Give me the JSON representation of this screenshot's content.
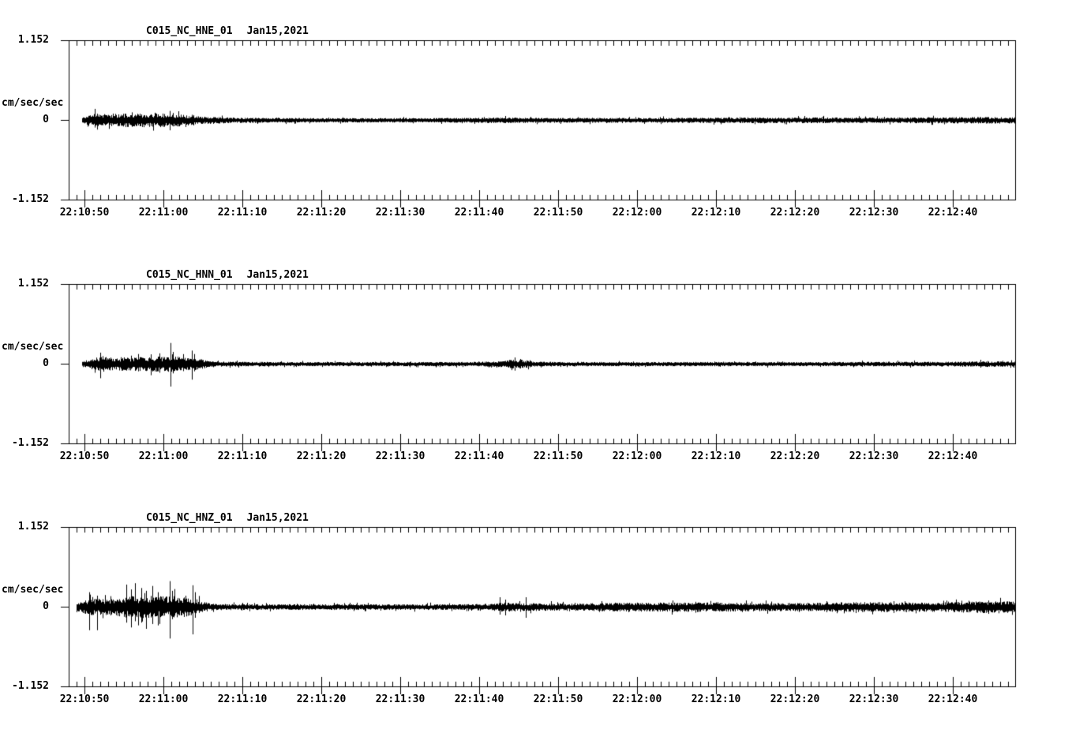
{
  "page": {
    "background": "#ffffff",
    "ink": "#000000"
  },
  "chart_data": [
    {
      "type": "line",
      "title": "C015_NC_HNE_01",
      "date_label": "Jan15,2021",
      "ylabel": "cm/sec/sec",
      "y_tick_labels": {
        "top": "1.152",
        "zero": "0",
        "bottom": "-1.152"
      },
      "ylim": [
        -1.152,
        1.152
      ],
      "x_tick_labels": [
        "22:10:50",
        "22:11:00",
        "22:11:10",
        "22:11:20",
        "22:11:30",
        "22:11:40",
        "22:11:50",
        "22:12:00",
        "22:12:10",
        "22:12:20",
        "22:12:30",
        "22:12:40"
      ],
      "x_range_s": 120,
      "x_major_spacing_s": 10,
      "x_minor_spacing_s": 1,
      "x_first_major_offset_s": 2,
      "grid": false,
      "legend": false,
      "trace": {
        "start_offset_s": 1.7,
        "noise_seed": 11,
        "envelope": [
          [
            1.7,
            0.034
          ],
          [
            2.5,
            0.068
          ],
          [
            4,
            0.08
          ],
          [
            8,
            0.09
          ],
          [
            12,
            0.09
          ],
          [
            14,
            0.08
          ],
          [
            16,
            0.057
          ],
          [
            18,
            0.046
          ],
          [
            20,
            0.034
          ],
          [
            24,
            0.028
          ],
          [
            32,
            0.025
          ],
          [
            42,
            0.025
          ],
          [
            50,
            0.028
          ],
          [
            55,
            0.034
          ],
          [
            60,
            0.028
          ],
          [
            72,
            0.028
          ],
          [
            82,
            0.032
          ],
          [
            92,
            0.034
          ],
          [
            102,
            0.032
          ],
          [
            110,
            0.037
          ],
          [
            116,
            0.04
          ],
          [
            120,
            0.04
          ]
        ],
        "spikes": [
          [
            3.3,
            0.16,
            0.11
          ],
          [
            3.6,
            0.09,
            0.14
          ],
          [
            8.0,
            0.11,
            0.1
          ],
          [
            9.0,
            0.09,
            0.09
          ],
          [
            12.8,
            0.13,
            0.15
          ],
          [
            13.2,
            0.1,
            0.09
          ],
          [
            15.8,
            0.07,
            0.08
          ],
          [
            55.3,
            0.057,
            0.046
          ],
          [
            95.5,
            0.046,
            0.046
          ]
        ]
      }
    },
    {
      "type": "line",
      "title": "C015_NC_HNN_01",
      "date_label": "Jan15,2021",
      "ylabel": "cm/sec/sec",
      "y_tick_labels": {
        "top": "1.152",
        "zero": "0",
        "bottom": "-1.152"
      },
      "ylim": [
        -1.152,
        1.152
      ],
      "x_tick_labels": [
        "22:10:50",
        "22:11:00",
        "22:11:10",
        "22:11:20",
        "22:11:30",
        "22:11:40",
        "22:11:50",
        "22:12:00",
        "22:12:10",
        "22:12:20",
        "22:12:30",
        "22:12:40"
      ],
      "x_range_s": 120,
      "x_major_spacing_s": 10,
      "x_minor_spacing_s": 1,
      "x_first_major_offset_s": 2,
      "grid": false,
      "legend": false,
      "trace": {
        "start_offset_s": 1.7,
        "noise_seed": 22,
        "envelope": [
          [
            1.7,
            0.034
          ],
          [
            2.5,
            0.068
          ],
          [
            4,
            0.09
          ],
          [
            8,
            0.09
          ],
          [
            12,
            0.1
          ],
          [
            13,
            0.11
          ],
          [
            14,
            0.09
          ],
          [
            16,
            0.08
          ],
          [
            17,
            0.057
          ],
          [
            18,
            0.034
          ],
          [
            20,
            0.028
          ],
          [
            30,
            0.023
          ],
          [
            42,
            0.023
          ],
          [
            52,
            0.025
          ],
          [
            55,
            0.04
          ],
          [
            56,
            0.057
          ],
          [
            57.5,
            0.057
          ],
          [
            59,
            0.028
          ],
          [
            70,
            0.023
          ],
          [
            82,
            0.025
          ],
          [
            92,
            0.023
          ],
          [
            100,
            0.025
          ],
          [
            106,
            0.028
          ],
          [
            110,
            0.025
          ],
          [
            116,
            0.034
          ],
          [
            120,
            0.028
          ]
        ],
        "spikes": [
          [
            4.0,
            0.16,
            0.21
          ],
          [
            4.3,
            0.11,
            0.09
          ],
          [
            8.8,
            0.14,
            0.11
          ],
          [
            11.5,
            0.15,
            0.13
          ],
          [
            12.9,
            0.3,
            0.33
          ],
          [
            13.2,
            0.17,
            0.14
          ],
          [
            15.6,
            0.19,
            0.23
          ],
          [
            15.9,
            0.14,
            0.11
          ],
          [
            56.5,
            0.09,
            0.1
          ],
          [
            57.2,
            0.068,
            0.068
          ],
          [
            100.5,
            0.046,
            0.046
          ],
          [
            115.5,
            0.057,
            0.057
          ]
        ]
      }
    },
    {
      "type": "line",
      "title": "C015_NC_HNZ_01",
      "date_label": "Jan15,2021",
      "ylabel": "cm/sec/sec",
      "y_tick_labels": {
        "top": "1.152",
        "zero": "0",
        "bottom": "-1.152"
      },
      "ylim": [
        -1.152,
        1.152
      ],
      "x_tick_labels": [
        "22:10:50",
        "22:11:00",
        "22:11:10",
        "22:11:20",
        "22:11:30",
        "22:11:40",
        "22:11:50",
        "22:12:00",
        "22:12:10",
        "22:12:20",
        "22:12:30",
        "22:12:40"
      ],
      "x_range_s": 120,
      "x_major_spacing_s": 10,
      "x_minor_spacing_s": 1,
      "x_first_major_offset_s": 2,
      "grid": false,
      "legend": false,
      "trace": {
        "start_offset_s": 1.0,
        "noise_seed": 33,
        "envelope": [
          [
            1.0,
            0.046
          ],
          [
            2,
            0.09
          ],
          [
            3,
            0.114
          ],
          [
            5,
            0.103
          ],
          [
            7,
            0.137
          ],
          [
            8,
            0.148
          ],
          [
            10,
            0.148
          ],
          [
            12,
            0.148
          ],
          [
            13,
            0.16
          ],
          [
            14,
            0.125
          ],
          [
            15,
            0.137
          ],
          [
            16,
            0.114
          ],
          [
            17,
            0.068
          ],
          [
            18,
            0.046
          ],
          [
            19,
            0.04
          ],
          [
            22,
            0.034
          ],
          [
            40,
            0.034
          ],
          [
            50,
            0.034
          ],
          [
            53,
            0.04
          ],
          [
            54.5,
            0.057
          ],
          [
            56,
            0.057
          ],
          [
            58,
            0.051
          ],
          [
            60,
            0.046
          ],
          [
            64,
            0.046
          ],
          [
            68,
            0.051
          ],
          [
            72,
            0.057
          ],
          [
            76,
            0.057
          ],
          [
            80,
            0.063
          ],
          [
            84,
            0.057
          ],
          [
            88,
            0.051
          ],
          [
            92,
            0.051
          ],
          [
            96,
            0.057
          ],
          [
            100,
            0.063
          ],
          [
            104,
            0.063
          ],
          [
            108,
            0.057
          ],
          [
            112,
            0.063
          ],
          [
            115,
            0.074
          ],
          [
            117,
            0.08
          ],
          [
            119,
            0.074
          ],
          [
            120,
            0.068
          ]
        ],
        "spikes": [
          [
            2.6,
            0.21,
            0.34
          ],
          [
            3.0,
            0.14,
            0.11
          ],
          [
            3.6,
            0.16,
            0.34
          ],
          [
            7.3,
            0.32,
            0.23
          ],
          [
            7.9,
            0.25,
            0.3
          ],
          [
            8.4,
            0.34,
            0.21
          ],
          [
            9.2,
            0.27,
            0.23
          ],
          [
            9.8,
            0.23,
            0.32
          ],
          [
            10.6,
            0.3,
            0.25
          ],
          [
            11.3,
            0.21,
            0.27
          ],
          [
            12.8,
            0.37,
            0.46
          ],
          [
            13.1,
            0.23,
            0.18
          ],
          [
            15.7,
            0.31,
            0.4
          ],
          [
            16.0,
            0.21,
            0.16
          ],
          [
            54.6,
            0.137,
            0.114
          ],
          [
            55.3,
            0.103,
            0.125
          ],
          [
            57.9,
            0.137,
            0.16
          ],
          [
            76.5,
            0.09,
            0.08
          ],
          [
            96.0,
            0.08,
            0.08
          ],
          [
            104.5,
            0.08,
            0.09
          ],
          [
            116.5,
            0.09,
            0.103
          ]
        ]
      }
    }
  ]
}
